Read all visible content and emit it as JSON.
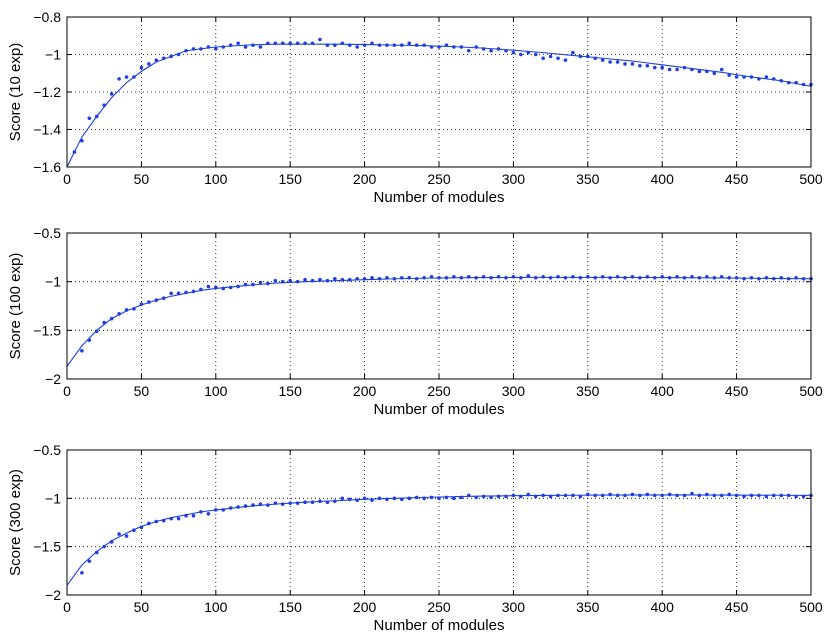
{
  "chart_data": [
    {
      "type": "scatter",
      "xlabel": "Number of modules",
      "ylabel": "Score (10 exp)",
      "xlim": [
        0,
        500
      ],
      "ylim": [
        -1.6,
        -0.8
      ],
      "xticks": [
        0,
        50,
        100,
        150,
        200,
        250,
        300,
        350,
        400,
        450,
        500
      ],
      "xtick_labels": [
        "0",
        "50",
        "100",
        "150",
        "200",
        "250",
        "300",
        "350",
        "400",
        "450",
        "500"
      ],
      "yticks": [
        -1.6,
        -1.4,
        -1.2,
        -1.0,
        -0.8
      ],
      "ytick_labels": [
        "−1.6",
        "−1.4",
        "−1.2",
        "−1",
        "−0.8"
      ],
      "grid": true,
      "color": "#1f3fdf",
      "series": [
        {
          "kind": "points",
          "x": [
            5,
            10,
            15,
            20,
            25,
            30,
            35,
            40,
            45,
            50,
            55,
            60,
            65,
            70,
            75,
            80,
            85,
            90,
            95,
            100,
            105,
            110,
            115,
            120,
            125,
            130,
            135,
            140,
            145,
            150,
            155,
            160,
            165,
            170,
            175,
            180,
            185,
            190,
            195,
            200,
            205,
            210,
            215,
            220,
            225,
            230,
            235,
            240,
            245,
            250,
            255,
            260,
            265,
            270,
            275,
            280,
            285,
            290,
            295,
            300,
            305,
            310,
            315,
            320,
            325,
            330,
            335,
            340,
            345,
            350,
            355,
            360,
            365,
            370,
            375,
            380,
            385,
            390,
            395,
            400,
            405,
            410,
            415,
            420,
            425,
            430,
            435,
            440,
            445,
            450,
            455,
            460,
            465,
            470,
            475,
            480,
            485,
            490,
            495,
            500
          ],
          "y": [
            -1.52,
            -1.46,
            -1.34,
            -1.33,
            -1.27,
            -1.21,
            -1.13,
            -1.12,
            -1.12,
            -1.07,
            -1.05,
            -1.03,
            -1.02,
            -1.01,
            -1.0,
            -0.98,
            -0.97,
            -0.97,
            -0.96,
            -0.97,
            -0.96,
            -0.95,
            -0.94,
            -0.96,
            -0.95,
            -0.96,
            -0.94,
            -0.94,
            -0.94,
            -0.94,
            -0.94,
            -0.94,
            -0.94,
            -0.92,
            -0.95,
            -0.95,
            -0.94,
            -0.95,
            -0.96,
            -0.95,
            -0.94,
            -0.95,
            -0.95,
            -0.95,
            -0.95,
            -0.94,
            -0.95,
            -0.95,
            -0.96,
            -0.96,
            -0.95,
            -0.96,
            -0.96,
            -0.98,
            -0.96,
            -0.97,
            -0.98,
            -0.97,
            -0.98,
            -0.99,
            -1.0,
            -0.99,
            -1.0,
            -1.02,
            -1.01,
            -1.02,
            -1.03,
            -0.99,
            -1.01,
            -1.01,
            -1.02,
            -1.03,
            -1.04,
            -1.04,
            -1.05,
            -1.05,
            -1.06,
            -1.06,
            -1.07,
            -1.07,
            -1.08,
            -1.08,
            -1.07,
            -1.08,
            -1.09,
            -1.09,
            -1.1,
            -1.08,
            -1.11,
            -1.12,
            -1.12,
            -1.12,
            -1.13,
            -1.12,
            -1.13,
            -1.14,
            -1.15,
            -1.15,
            -1.16,
            -1.16
          ]
        },
        {
          "kind": "fit",
          "x": [
            0,
            10,
            20,
            30,
            40,
            50,
            60,
            70,
            80,
            90,
            100,
            120,
            140,
            160,
            180,
            200,
            220,
            240,
            260,
            280,
            300,
            320,
            340,
            360,
            380,
            400,
            420,
            440,
            460,
            480,
            500
          ],
          "y": [
            -1.6,
            -1.44,
            -1.33,
            -1.23,
            -1.15,
            -1.09,
            -1.04,
            -1.01,
            -0.98,
            -0.97,
            -0.96,
            -0.95,
            -0.945,
            -0.945,
            -0.945,
            -0.947,
            -0.95,
            -0.953,
            -0.958,
            -0.966,
            -0.977,
            -0.99,
            -1.005,
            -1.02,
            -1.035,
            -1.055,
            -1.075,
            -1.095,
            -1.12,
            -1.14,
            -1.17
          ]
        }
      ]
    },
    {
      "type": "scatter",
      "xlabel": "Number of modules",
      "ylabel": "Score (100 exp)",
      "xlim": [
        0,
        500
      ],
      "ylim": [
        -2,
        -0.5
      ],
      "xticks": [
        0,
        50,
        100,
        150,
        200,
        250,
        300,
        350,
        400,
        450,
        500
      ],
      "xtick_labels": [
        "0",
        "50",
        "100",
        "150",
        "200",
        "250",
        "300",
        "350",
        "400",
        "450",
        "500"
      ],
      "yticks": [
        -2,
        -1.5,
        -1,
        -0.5
      ],
      "ytick_labels": [
        "−2",
        "−1.5",
        "−1",
        "−0.5"
      ],
      "grid": true,
      "color": "#1f3fdf",
      "series": [
        {
          "kind": "points",
          "x": [
            10,
            15,
            20,
            25,
            30,
            35,
            40,
            45,
            50,
            55,
            60,
            65,
            70,
            75,
            80,
            85,
            90,
            95,
            100,
            105,
            110,
            115,
            120,
            125,
            130,
            135,
            140,
            145,
            150,
            155,
            160,
            165,
            170,
            175,
            180,
            185,
            190,
            195,
            200,
            205,
            210,
            215,
            220,
            225,
            230,
            235,
            240,
            245,
            250,
            255,
            260,
            265,
            270,
            275,
            280,
            285,
            290,
            295,
            300,
            305,
            310,
            315,
            320,
            325,
            330,
            335,
            340,
            345,
            350,
            355,
            360,
            365,
            370,
            375,
            380,
            385,
            390,
            395,
            400,
            405,
            410,
            415,
            420,
            425,
            430,
            435,
            440,
            445,
            450,
            455,
            460,
            465,
            470,
            475,
            480,
            485,
            490,
            495,
            500
          ],
          "y": [
            -1.71,
            -1.6,
            -1.51,
            -1.42,
            -1.38,
            -1.33,
            -1.29,
            -1.28,
            -1.23,
            -1.21,
            -1.19,
            -1.17,
            -1.12,
            -1.12,
            -1.11,
            -1.1,
            -1.08,
            -1.05,
            -1.06,
            -1.07,
            -1.06,
            -1.05,
            -1.03,
            -1.03,
            -1.01,
            -1.02,
            -0.99,
            -1.0,
            -0.99,
            -1.0,
            -0.98,
            -0.99,
            -0.98,
            -0.99,
            -0.97,
            -0.98,
            -0.98,
            -0.97,
            -0.97,
            -0.96,
            -0.97,
            -0.96,
            -0.97,
            -0.96,
            -0.96,
            -0.97,
            -0.96,
            -0.95,
            -0.96,
            -0.96,
            -0.95,
            -0.96,
            -0.95,
            -0.96,
            -0.95,
            -0.96,
            -0.95,
            -0.96,
            -0.95,
            -0.96,
            -0.94,
            -0.96,
            -0.95,
            -0.96,
            -0.95,
            -0.96,
            -0.95,
            -0.96,
            -0.95,
            -0.96,
            -0.95,
            -0.96,
            -0.95,
            -0.96,
            -0.95,
            -0.96,
            -0.95,
            -0.96,
            -0.95,
            -0.96,
            -0.95,
            -0.96,
            -0.95,
            -0.96,
            -0.95,
            -0.96,
            -0.95,
            -0.96,
            -0.96,
            -0.97,
            -0.96,
            -0.97,
            -0.96,
            -0.97,
            -0.96,
            -0.97,
            -0.96,
            -0.97,
            -0.97
          ]
        },
        {
          "kind": "fit",
          "x": [
            0,
            10,
            20,
            30,
            40,
            50,
            60,
            70,
            80,
            90,
            100,
            120,
            140,
            160,
            180,
            200,
            220,
            240,
            260,
            280,
            300,
            320,
            340,
            360,
            380,
            400,
            420,
            440,
            460,
            480,
            500
          ],
          "y": [
            -1.87,
            -1.66,
            -1.5,
            -1.38,
            -1.3,
            -1.24,
            -1.19,
            -1.15,
            -1.12,
            -1.09,
            -1.07,
            -1.04,
            -1.015,
            -1.0,
            -0.99,
            -0.98,
            -0.97,
            -0.965,
            -0.96,
            -0.958,
            -0.957,
            -0.956,
            -0.956,
            -0.956,
            -0.957,
            -0.958,
            -0.96,
            -0.962,
            -0.965,
            -0.968,
            -0.97
          ]
        }
      ]
    },
    {
      "type": "scatter",
      "xlabel": "Number of modules",
      "ylabel": "Score (300 exp)",
      "xlim": [
        0,
        500
      ],
      "ylim": [
        -2,
        -0.5
      ],
      "xticks": [
        0,
        50,
        100,
        150,
        200,
        250,
        300,
        350,
        400,
        450,
        500
      ],
      "xtick_labels": [
        "0",
        "50",
        "100",
        "150",
        "200",
        "250",
        "300",
        "350",
        "400",
        "450",
        "500"
      ],
      "yticks": [
        -2,
        -1.5,
        -1,
        -0.5
      ],
      "ytick_labels": [
        "−2",
        "−1.5",
        "−1",
        "−0.5"
      ],
      "grid": true,
      "color": "#1f3fdf",
      "series": [
        {
          "kind": "points",
          "x": [
            10,
            15,
            20,
            25,
            30,
            35,
            40,
            45,
            50,
            55,
            60,
            65,
            70,
            75,
            80,
            85,
            90,
            95,
            100,
            105,
            110,
            115,
            120,
            125,
            130,
            135,
            140,
            145,
            150,
            155,
            160,
            165,
            170,
            175,
            180,
            185,
            190,
            195,
            200,
            205,
            210,
            215,
            220,
            225,
            230,
            235,
            240,
            245,
            250,
            255,
            260,
            265,
            270,
            275,
            280,
            285,
            290,
            295,
            300,
            305,
            310,
            315,
            320,
            325,
            330,
            335,
            340,
            345,
            350,
            355,
            360,
            365,
            370,
            375,
            380,
            385,
            390,
            395,
            400,
            405,
            410,
            415,
            420,
            425,
            430,
            435,
            440,
            445,
            450,
            455,
            460,
            465,
            470,
            475,
            480,
            485,
            490,
            495,
            500
          ],
          "y": [
            -1.77,
            -1.65,
            -1.56,
            -1.5,
            -1.45,
            -1.37,
            -1.39,
            -1.33,
            -1.3,
            -1.26,
            -1.24,
            -1.23,
            -1.21,
            -1.21,
            -1.18,
            -1.18,
            -1.14,
            -1.16,
            -1.12,
            -1.12,
            -1.1,
            -1.09,
            -1.08,
            -1.07,
            -1.06,
            -1.07,
            -1.05,
            -1.06,
            -1.05,
            -1.05,
            -1.04,
            -1.04,
            -1.03,
            -1.04,
            -1.03,
            -1.0,
            -1.01,
            -1.02,
            -1.0,
            -1.02,
            -1.0,
            -1.01,
            -1.0,
            -1.01,
            -1.0,
            -0.99,
            -1.0,
            -0.99,
            -1.0,
            -0.99,
            -1.0,
            -0.99,
            -0.97,
            -0.99,
            -0.98,
            -0.99,
            -0.98,
            -0.98,
            -0.97,
            -0.98,
            -0.96,
            -0.98,
            -0.97,
            -0.98,
            -0.97,
            -0.97,
            -0.97,
            -0.98,
            -0.96,
            -0.97,
            -0.97,
            -0.96,
            -0.97,
            -0.97,
            -0.96,
            -0.97,
            -0.96,
            -0.97,
            -0.97,
            -0.96,
            -0.97,
            -0.97,
            -0.95,
            -0.97,
            -0.96,
            -0.97,
            -0.97,
            -0.96,
            -0.97,
            -0.98,
            -0.97,
            -0.97,
            -0.98,
            -0.97,
            -0.97,
            -0.97,
            -0.98,
            -0.98,
            -0.97
          ]
        },
        {
          "kind": "fit",
          "x": [
            0,
            10,
            20,
            30,
            40,
            50,
            60,
            70,
            80,
            90,
            100,
            120,
            140,
            160,
            180,
            200,
            220,
            240,
            260,
            280,
            300,
            320,
            340,
            360,
            380,
            400,
            420,
            440,
            460,
            480,
            500
          ],
          "y": [
            -1.9,
            -1.69,
            -1.55,
            -1.44,
            -1.36,
            -1.29,
            -1.24,
            -1.2,
            -1.17,
            -1.14,
            -1.12,
            -1.085,
            -1.06,
            -1.04,
            -1.025,
            -1.01,
            -1.0,
            -0.99,
            -0.983,
            -0.977,
            -0.973,
            -0.97,
            -0.968,
            -0.966,
            -0.965,
            -0.965,
            -0.965,
            -0.966,
            -0.967,
            -0.968,
            -0.97
          ]
        }
      ]
    }
  ]
}
